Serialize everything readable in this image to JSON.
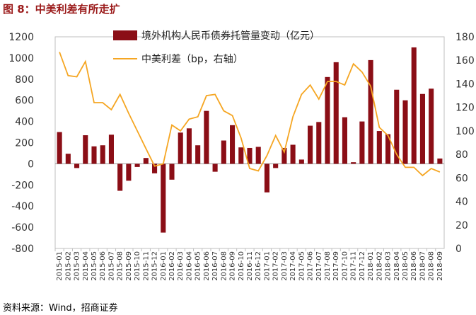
{
  "figure": {
    "title": "图 8：中美利差有所走扩",
    "source": "资料来源：Wind，招商证券"
  },
  "colors": {
    "bar": "#8b0e16",
    "line": "#f5a623",
    "title": "#9b1b1b"
  },
  "chart_data": {
    "type": "bar+line",
    "categories": [
      "2015-01",
      "2015-02",
      "2015-03",
      "2015-04",
      "2015-05",
      "2015-06",
      "2015-07",
      "2015-08",
      "2015-09",
      "2015-10",
      "2015-11",
      "2015-12",
      "2016-01",
      "2016-02",
      "2016-03",
      "2016-04",
      "2016-05",
      "2016-06",
      "2016-07",
      "2016-08",
      "2016-09",
      "2016-10",
      "2016-11",
      "2016-12",
      "2017-01",
      "2017-02",
      "2017-03",
      "2017-04",
      "2017-05",
      "2017-06",
      "2017-07",
      "2017-08",
      "2017-09",
      "2017-10",
      "2017-11",
      "2017-12",
      "2018-01",
      "2018-02",
      "2018-03",
      "2018-04",
      "2018-05",
      "2018-06",
      "2018-07",
      "2018-08",
      "2018-09"
    ],
    "x_tick_labels": [
      "2015-01",
      "2015-02",
      "2015-03",
      "2015-04",
      "2015-05",
      "2015-06",
      "2015-07",
      "2015-08",
      "2015-09",
      "2015-10",
      "2015-11",
      "2015-12",
      "2016-01",
      "2016-02",
      "2016-03",
      "2016-04",
      "2016-05",
      "2016-06",
      "2016-07",
      "2016-08",
      "2016-09",
      "2016-10",
      "2016-11",
      "2016-12",
      "2017-01",
      "2017-02",
      "2017-03",
      "2017-04",
      "2017-05",
      "2017-06",
      "2017-07",
      "2017-08",
      "2017-09",
      "2017-10",
      "2017-11",
      "2017-12",
      "2018-01",
      "2018-02",
      "2018-03",
      "2018-04",
      "2018-05",
      "2018-06",
      "2018-07",
      "2018-08",
      "2018-09"
    ],
    "series": [
      {
        "name": "境外机构人民币债券托管量变动（亿元）",
        "type": "bar",
        "axis": "left",
        "values": [
          300,
          95,
          -40,
          270,
          165,
          175,
          275,
          -255,
          -160,
          -30,
          55,
          -90,
          -650,
          -150,
          295,
          335,
          175,
          500,
          -75,
          220,
          365,
          155,
          150,
          160,
          -270,
          -40,
          150,
          180,
          40,
          360,
          395,
          820,
          960,
          440,
          15,
          400,
          980,
          310,
          280,
          700,
          600,
          1100,
          660,
          710,
          50
        ]
      },
      {
        "name": "中美利差（bp，右轴）",
        "type": "line",
        "axis": "right",
        "values": [
          167,
          147,
          146,
          159,
          124,
          124,
          118,
          131,
          115,
          100,
          85,
          70,
          72,
          105,
          100,
          110,
          112,
          130,
          131,
          117,
          113,
          94,
          68,
          66,
          79,
          96,
          82,
          112,
          131,
          139,
          127,
          142,
          142,
          139,
          157,
          150,
          138,
          103,
          96,
          80,
          69,
          69,
          62,
          68,
          65
        ]
      }
    ],
    "left_axis": {
      "min": -800,
      "max": 1200,
      "ticks": [
        -800,
        -600,
        -400,
        -200,
        0,
        200,
        400,
        600,
        800,
        1000,
        1200
      ]
    },
    "right_axis": {
      "min": 0,
      "max": 180,
      "ticks": [
        0,
        20,
        40,
        60,
        80,
        100,
        120,
        140,
        160,
        180
      ]
    },
    "grid": false,
    "legend_position": "top-center"
  }
}
